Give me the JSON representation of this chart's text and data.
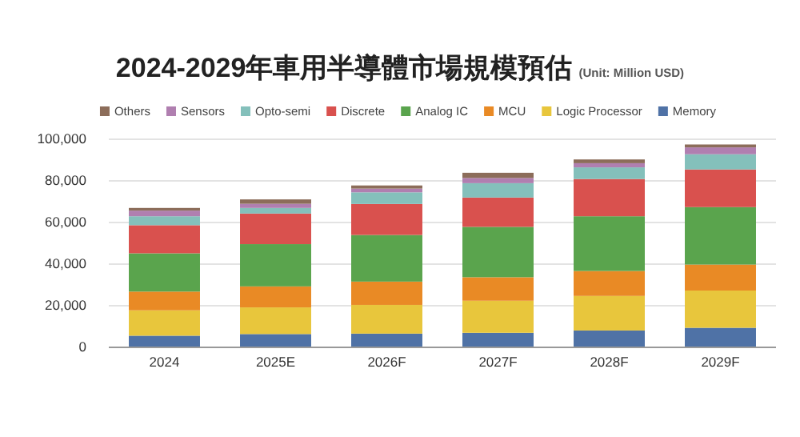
{
  "chart_data": {
    "type": "bar",
    "stacked": true,
    "title": "2024-2029年車用半導體市場規模預估",
    "subtitle": "(Unit: Million USD)",
    "categories": [
      "2024",
      "2025E",
      "2026F",
      "2027F",
      "2028F",
      "2029F"
    ],
    "series": [
      {
        "name": "Memory",
        "color": "#4f72a6",
        "values": [
          5600,
          6400,
          6600,
          7000,
          8100,
          9400
        ]
      },
      {
        "name": "Logic Processor",
        "color": "#e8c63c",
        "values": [
          12200,
          12800,
          13800,
          15400,
          16600,
          17900
        ]
      },
      {
        "name": "MCU",
        "color": "#e98a25",
        "values": [
          9000,
          10100,
          11200,
          11300,
          12000,
          12500
        ]
      },
      {
        "name": "Analog IC",
        "color": "#5aa44d",
        "values": [
          18400,
          20300,
          22400,
          24200,
          26300,
          27600
        ]
      },
      {
        "name": "Discrete",
        "color": "#d9514e",
        "values": [
          13500,
          14700,
          14900,
          14100,
          17900,
          18100
        ]
      },
      {
        "name": "Opto-semi",
        "color": "#84c0bb",
        "values": [
          4300,
          2700,
          5600,
          6900,
          5600,
          7300
        ]
      },
      {
        "name": "Sensors",
        "color": "#b07fb0",
        "values": [
          2700,
          2000,
          1800,
          2500,
          2000,
          3300
        ]
      },
      {
        "name": "Others",
        "color": "#8c6d5a",
        "values": [
          1300,
          2100,
          1500,
          2500,
          1800,
          1400
        ]
      }
    ],
    "ylim": [
      0,
      100000
    ],
    "yticks": [
      {
        "value": 0,
        "label": "0"
      },
      {
        "value": 20000,
        "label": "20,000"
      },
      {
        "value": 40000,
        "label": "40,000"
      },
      {
        "value": 60000,
        "label": "60,000"
      },
      {
        "value": 80000,
        "label": "80,000"
      },
      {
        "value": 100000,
        "label": "100,000"
      }
    ],
    "grid": "y",
    "legend": "top"
  }
}
